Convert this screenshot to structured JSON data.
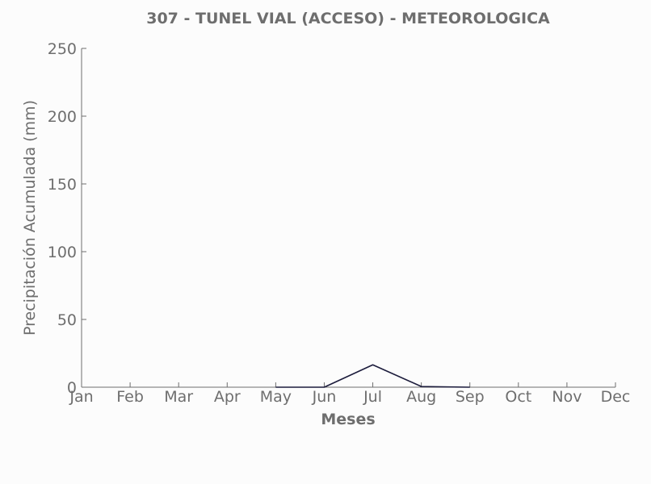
{
  "chart_data": {
    "type": "line",
    "title": "307 - TUNEL VIAL (ACCESO) - METEOROLOGICA",
    "xlabel": "Meses",
    "ylabel": "Precipitación Acumulada (mm)",
    "categories": [
      "Jan",
      "Feb",
      "Mar",
      "Apr",
      "May",
      "Jun",
      "Jul",
      "Aug",
      "Sep",
      "Oct",
      "Nov",
      "Dec"
    ],
    "series": [
      {
        "color": "#1c1c3c",
        "x": [
          "May",
          "Jun",
          "Jul",
          "Aug",
          "Sep"
        ],
        "values": [
          0,
          0,
          16.5,
          0.5,
          0
        ]
      }
    ],
    "ylim": [
      0,
      250
    ],
    "yticks": [
      0,
      50,
      100,
      150,
      200,
      250
    ],
    "grid": false,
    "legend": false,
    "axis_color": "#6e6e6e",
    "text_color": "#6e6e6e"
  }
}
